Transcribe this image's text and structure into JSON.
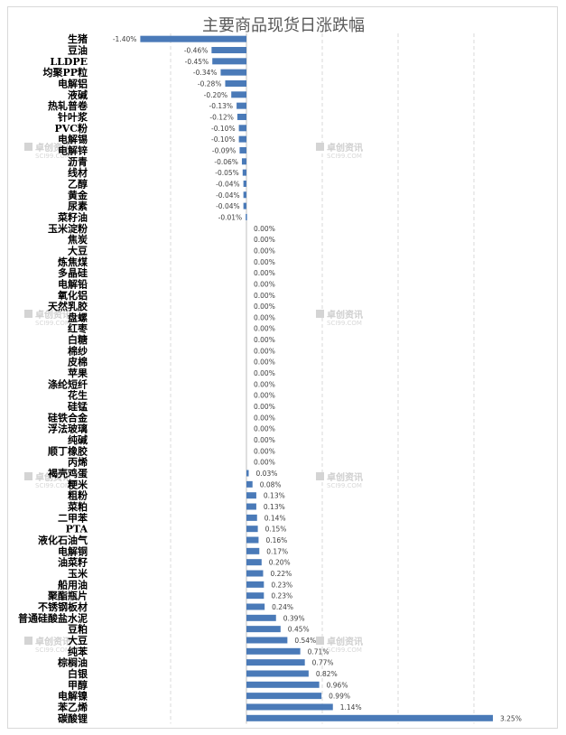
{
  "watermark": {
    "text": "卓创资讯",
    "sub": "SCI99.COM"
  },
  "chart_data": {
    "type": "bar",
    "orientation": "horizontal",
    "title": "主要商品现货日涨跌幅",
    "xlim": [
      -1.6,
      3.6
    ],
    "grid": true,
    "bar_color": "#4a7ab8",
    "categories": [
      "生猪",
      "豆油",
      "LLDPE",
      "均聚PP粒",
      "电解铝",
      "液碱",
      "热轧普卷",
      "针叶浆",
      "PVC粉",
      "电解锡",
      "电解锌",
      "沥青",
      "线材",
      "乙醇",
      "黄金",
      "尿素",
      "菜籽油",
      "玉米淀粉",
      "焦炭",
      "大豆",
      "炼焦煤",
      "多晶硅",
      "电解铅",
      "氧化铝",
      "天然乳胶",
      "盘螺",
      "红枣",
      "白糖",
      "棉纱",
      "皮棉",
      "苹果",
      "涤纶短纤",
      "花生",
      "硅锰",
      "硅铁合金",
      "浮法玻璃",
      "纯碱",
      "顺丁橡胶",
      "丙烯",
      "褐壳鸡蛋",
      "粳米",
      "粗粉",
      "菜粕",
      "二甲苯",
      "PTA",
      "液化石油气",
      "电解铜",
      "油菜籽",
      "玉米",
      "船用油",
      "聚酯瓶片",
      "不锈钢板材",
      "普通硅酸盐水泥",
      "豆粕",
      "大豆",
      "纯苯",
      "棕榈油",
      "白银",
      "甲醇",
      "电解镍",
      "苯乙烯",
      "碳酸锂"
    ],
    "values": [
      -1.4,
      -0.46,
      -0.45,
      -0.34,
      -0.28,
      -0.2,
      -0.13,
      -0.12,
      -0.1,
      -0.1,
      -0.09,
      -0.06,
      -0.05,
      -0.04,
      -0.04,
      -0.04,
      -0.01,
      0.0,
      0.0,
      0.0,
      0.0,
      0.0,
      0.0,
      0.0,
      0.0,
      0.0,
      0.0,
      0.0,
      0.0,
      0.0,
      0.0,
      0.0,
      0.0,
      0.0,
      0.0,
      0.0,
      0.0,
      0.0,
      0.0,
      0.03,
      0.08,
      0.13,
      0.13,
      0.14,
      0.15,
      0.16,
      0.17,
      0.2,
      0.22,
      0.23,
      0.23,
      0.24,
      0.39,
      0.45,
      0.54,
      0.71,
      0.77,
      0.82,
      0.96,
      0.99,
      1.14,
      3.25
    ],
    "labels": [
      "-1.40%",
      "-0.46%",
      "-0.45%",
      "-0.34%",
      "-0.28%",
      "-0.20%",
      "-0.13%",
      "-0.12%",
      "-0.10%",
      "-0.10%",
      "-0.09%",
      "-0.06%",
      "-0.05%",
      "-0.04%",
      "-0.04%",
      "-0.04%",
      "-0.01%",
      "0.00%",
      "0.00%",
      "0.00%",
      "0.00%",
      "0.00%",
      "0.00%",
      "0.00%",
      "0.00%",
      "0.00%",
      "0.00%",
      "0.00%",
      "0.00%",
      "0.00%",
      "0.00%",
      "0.00%",
      "0.00%",
      "0.00%",
      "0.00%",
      "0.00%",
      "0.00%",
      "0.00%",
      "0.00%",
      "0.03%",
      "0.08%",
      "0.13%",
      "0.13%",
      "0.14%",
      "0.15%",
      "0.16%",
      "0.17%",
      "0.20%",
      "0.22%",
      "0.23%",
      "0.23%",
      "0.24%",
      "0.39%",
      "0.45%",
      "0.54%",
      "0.71%",
      "0.77%",
      "0.82%",
      "0.96%",
      "0.99%",
      "1.14%",
      "3.25%"
    ]
  }
}
